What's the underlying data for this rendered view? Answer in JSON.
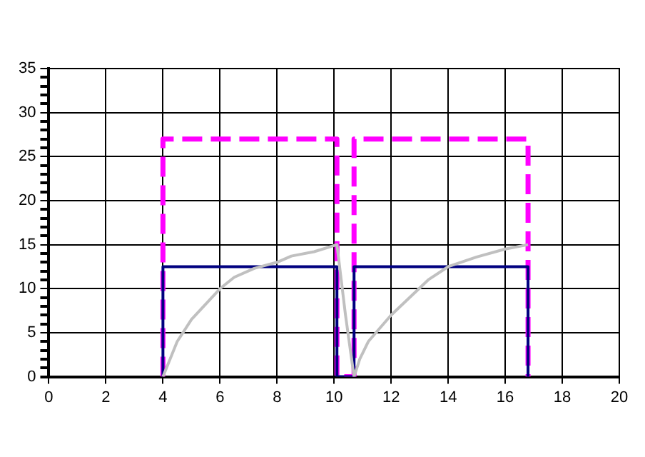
{
  "chart_data": {
    "type": "line",
    "marker": "none",
    "grid": true,
    "legend": false,
    "xlim": [
      0,
      20
    ],
    "xticks": [
      0,
      2,
      4,
      6,
      8,
      10,
      12,
      14,
      16,
      18,
      20
    ],
    "ylim": [
      0,
      35
    ],
    "yticks": [
      0,
      {
        "value": 1,
        "label": null
      },
      {
        "value": 2,
        "label": null
      },
      {
        "value": 3,
        "label": null
      },
      {
        "value": 4,
        "label": null
      },
      5,
      {
        "value": 6,
        "label": null
      },
      {
        "value": 7,
        "label": null
      },
      {
        "value": 8,
        "label": null
      },
      {
        "value": 9,
        "label": null
      },
      10,
      {
        "value": 11,
        "label": null
      },
      {
        "value": 12,
        "label": null
      },
      {
        "value": 13,
        "label": null
      },
      {
        "value": 14,
        "label": null
      },
      15,
      {
        "value": 16,
        "label": null
      },
      {
        "value": 17,
        "label": null
      },
      {
        "value": 18,
        "label": null
      },
      {
        "value": 19,
        "label": null
      },
      20,
      {
        "value": 21,
        "label": null
      },
      {
        "value": 22,
        "label": null
      },
      {
        "value": 23,
        "label": null
      },
      {
        "value": 24,
        "label": null
      },
      25,
      {
        "value": 26,
        "label": null
      },
      {
        "value": 27,
        "label": null
      },
      {
        "value": 28,
        "label": null
      },
      {
        "value": 29,
        "label": null
      },
      30,
      {
        "value": 31,
        "label": null
      },
      {
        "value": 32,
        "label": null
      },
      {
        "value": 33,
        "label": null
      },
      {
        "value": 34,
        "label": null
      },
      35
    ],
    "series": [
      {
        "color": "#c0c0c0",
        "line_style": "solid",
        "x": [
          4,
          4.5,
          5,
          6,
          6.5,
          7.2,
          8,
          8.5,
          9.3,
          10.1,
          10.4,
          10.7,
          10.9,
          11.2,
          12,
          13.3,
          14,
          15,
          16,
          16.8
        ],
        "values": [
          0,
          4,
          6.5,
          10,
          11.3,
          12.3,
          13,
          13.7,
          14.2,
          15,
          7,
          0,
          2,
          4,
          7,
          11,
          12.5,
          13.6,
          14.5,
          15
        ]
      },
      {
        "color": "#000080",
        "line_style": "solid",
        "x": [
          4,
          4,
          10.1,
          10.1,
          10.7,
          10.7,
          16.8,
          16.8
        ],
        "values": [
          0,
          12.5,
          12.5,
          0,
          0,
          12.5,
          12.5,
          0
        ]
      },
      {
        "color": "#ff00ff",
        "line_style": "dashed",
        "x": [
          4,
          4,
          10.1,
          10.1,
          10.7,
          10.7,
          16.8,
          16.8
        ],
        "values": [
          0,
          27,
          27,
          0,
          0,
          27,
          27,
          0
        ]
      }
    ]
  }
}
